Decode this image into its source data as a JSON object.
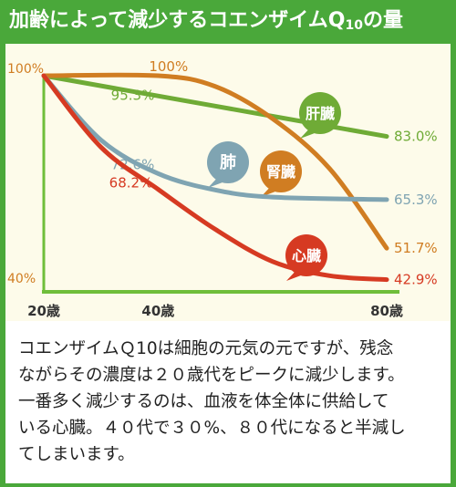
{
  "title": {
    "main": "加齢によって減少するコエンザイムQ",
    "subscript": "10",
    "suffix": "の量"
  },
  "colors": {
    "frame": "#4aa83a",
    "liver": "#6fab36",
    "lung": "#7fa4b2",
    "kidney": "#d07d22",
    "heart": "#d63a22",
    "axis": "#6fbe3a"
  },
  "chart_data": {
    "type": "line",
    "title": "加齢によって減少するコエンザイムQ10の量",
    "x_ticks": [
      {
        "value": 20,
        "label": "20歳"
      },
      {
        "value": 40,
        "label": "40歳"
      },
      {
        "value": 80,
        "label": "80歳"
      }
    ],
    "y_ticks": [
      {
        "value": 100,
        "label": "100%"
      },
      {
        "value": 40,
        "label": "40%"
      }
    ],
    "xlim": [
      20,
      80
    ],
    "ylim": [
      40,
      100
    ],
    "series": [
      {
        "name": "肝臓",
        "key": "liver",
        "points": [
          [
            20,
            100
          ],
          [
            80,
            83
          ]
        ],
        "value_labels": [
          {
            "x": 40,
            "y": 95.3,
            "text": "95.3%"
          },
          {
            "x": 80,
            "y": 83,
            "text": "83.0%"
          }
        ]
      },
      {
        "name": "腎臓",
        "key": "kidney",
        "points": [
          [
            20,
            100
          ],
          [
            40,
            100
          ],
          [
            50,
            97
          ],
          [
            60,
            88
          ],
          [
            70,
            74
          ],
          [
            80,
            51.7
          ]
        ],
        "value_labels": [
          {
            "x": 40,
            "y": 100,
            "text": "100%"
          },
          {
            "x": 80,
            "y": 51.7,
            "text": "51.7%"
          }
        ]
      },
      {
        "name": "肺",
        "key": "lung",
        "points": [
          [
            20,
            100
          ],
          [
            30,
            82
          ],
          [
            40,
            72.6
          ],
          [
            50,
            68
          ],
          [
            60,
            66
          ],
          [
            80,
            65.3
          ]
        ],
        "value_labels": [
          {
            "x": 40,
            "y": 72.6,
            "text": "72.6%"
          },
          {
            "x": 80,
            "y": 65.3,
            "text": "65.3%"
          }
        ]
      },
      {
        "name": "心臓",
        "key": "heart",
        "points": [
          [
            20,
            100
          ],
          [
            30,
            80
          ],
          [
            40,
            68.2
          ],
          [
            50,
            57
          ],
          [
            60,
            48
          ],
          [
            70,
            44
          ],
          [
            80,
            42.9
          ]
        ],
        "value_labels": [
          {
            "x": 40,
            "y": 68.2,
            "text": "68.2%"
          },
          {
            "x": 80,
            "y": 42.9,
            "text": "42.9%"
          }
        ]
      }
    ]
  },
  "description_lines": [
    "コエンザイムＱ10は細胞の元気の元ですが、残念",
    "ながらその濃度は２０歳代をピークに減少します。",
    "一番多く減少するのは、血液を体全体に供給して",
    "いる心臓。４０代で３０%、８０代になると半減し",
    "てしまいます。"
  ]
}
